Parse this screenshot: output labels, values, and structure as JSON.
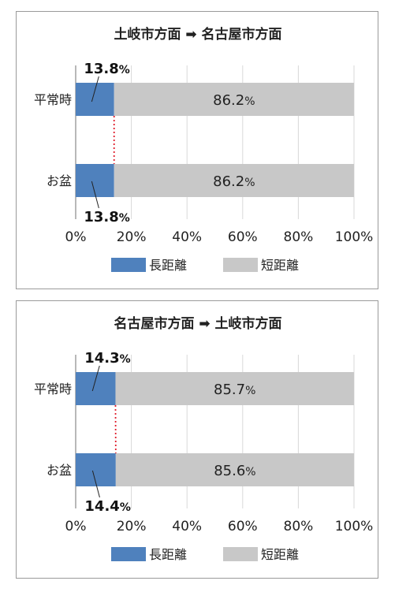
{
  "chart_data": [
    {
      "type": "bar",
      "orientation": "horizontal",
      "stacked": true,
      "title": "土岐市方面 ➡ 名古屋市方面",
      "categories": [
        "平常時",
        "お盆"
      ],
      "series": [
        {
          "name": "長距離",
          "values": [
            13.8,
            13.8
          ],
          "labels": [
            "13.8%",
            "13.8%"
          ],
          "color": "#4f81bd"
        },
        {
          "name": "短距離",
          "values": [
            86.2,
            86.2
          ],
          "labels": [
            "86.2%",
            "86.2%"
          ],
          "color": "#c8c8c8"
        }
      ],
      "xlim": [
        0,
        100
      ],
      "xticks": [
        "0%",
        "20%",
        "40%",
        "60%",
        "80%",
        "100%"
      ],
      "grid": "vertical",
      "legend": "bottom",
      "connector_color": "#e0202e"
    },
    {
      "type": "bar",
      "orientation": "horizontal",
      "stacked": true,
      "title": "名古屋市方面 ➡ 土岐市方面",
      "categories": [
        "平常時",
        "お盆"
      ],
      "series": [
        {
          "name": "長距離",
          "values": [
            14.3,
            14.4
          ],
          "labels": [
            "14.3%",
            "14.4%"
          ],
          "color": "#4f81bd"
        },
        {
          "name": "短距離",
          "values": [
            85.7,
            85.6
          ],
          "labels": [
            "85.7%",
            "85.6%"
          ],
          "color": "#c8c8c8"
        }
      ],
      "xlim": [
        0,
        100
      ],
      "xticks": [
        "0%",
        "20%",
        "40%",
        "60%",
        "80%",
        "100%"
      ],
      "grid": "vertical",
      "legend": "bottom",
      "connector_color": "#e0202e"
    }
  ]
}
